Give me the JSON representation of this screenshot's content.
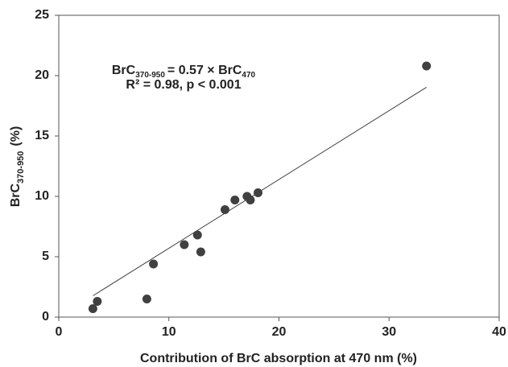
{
  "chart_data": {
    "type": "scatter",
    "x": [
      3.1,
      3.5,
      8.0,
      8.6,
      11.4,
      12.6,
      12.9,
      15.1,
      16.0,
      17.1,
      17.4,
      18.1,
      33.4
    ],
    "values": [
      0.7,
      1.3,
      1.5,
      4.4,
      6.0,
      6.8,
      5.4,
      8.9,
      9.7,
      10.0,
      9.7,
      10.3,
      20.8
    ],
    "color": "#404040",
    "xlim": [
      0,
      40
    ],
    "xticks": [
      0,
      10,
      20,
      30,
      40
    ],
    "ylim": [
      0,
      25
    ],
    "yticks": [
      0,
      5,
      10,
      15,
      20,
      25
    ],
    "xlabel": "Contribution of BrC absorption at 470 nm (%)",
    "ylabel": {
      "main": "BrC",
      "sub": "370-950",
      "unit": "(%)"
    },
    "fit": {
      "slope": 0.57,
      "color": "#404040"
    },
    "annotation": {
      "line1": [
        "BrC",
        "370-950",
        "= 0.57 × BrC",
        "470"
      ],
      "line2": "R² = 0.98, p < 0.001"
    }
  }
}
